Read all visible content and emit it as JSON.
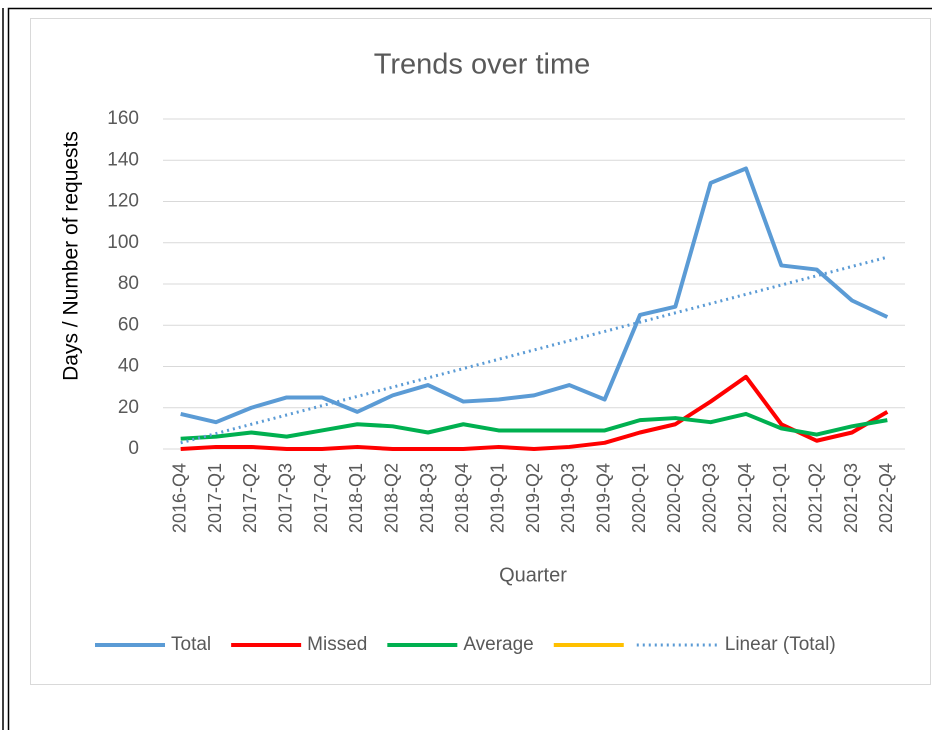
{
  "chart_data": {
    "type": "line",
    "title": "Trends over time",
    "x_label": "Quarter",
    "y_label": "Days / Number of requests",
    "categories": [
      "2016-Q4",
      "2017-Q1",
      "2017-Q2",
      "2017-Q3",
      "2017-Q4",
      "2018-Q1",
      "2018-Q2",
      "2018-Q3",
      "2018-Q4",
      "2019-Q1",
      "2019-Q2",
      "2019-Q3",
      "2019-Q4",
      "2020-Q1",
      "2020-Q2",
      "2020-Q3",
      "2021-Q4",
      "2021-Q1",
      "2021-Q2",
      "2021-Q3",
      "2022-Q4"
    ],
    "series": [
      {
        "name": "Total",
        "color": "#5b9bd5",
        "values": [
          17,
          13,
          20,
          25,
          25,
          18,
          26,
          31,
          23,
          24,
          26,
          31,
          24,
          65,
          69,
          129,
          136,
          89,
          87,
          72,
          64
        ]
      },
      {
        "name": "Missed",
        "color": "#ff0000",
        "values": [
          0,
          1,
          1,
          0,
          0,
          1,
          0,
          0,
          0,
          1,
          0,
          1,
          3,
          8,
          12,
          23,
          35,
          12,
          4,
          8,
          18
        ]
      },
      {
        "name": "Average",
        "color": "#00b050",
        "values": [
          5,
          6,
          8,
          6,
          9,
          12,
          11,
          8,
          12,
          9,
          9,
          9,
          9,
          14,
          15,
          13,
          17,
          10,
          7,
          11,
          14
        ]
      },
      {
        "color": "#ffc000",
        "values": [
          null,
          null,
          null,
          null,
          null,
          null,
          null,
          null,
          null,
          null,
          null,
          null,
          null,
          null,
          null,
          null,
          null,
          null,
          null,
          null,
          null
        ]
      }
    ],
    "trendline": {
      "name": "Linear (Total)",
      "color": "#5b9bd5",
      "start": 3,
      "end": 93
    },
    "ylim": [
      0,
      160
    ],
    "yticks": [
      0,
      20,
      40,
      60,
      80,
      100,
      120,
      140,
      160
    ],
    "grid": true
  }
}
